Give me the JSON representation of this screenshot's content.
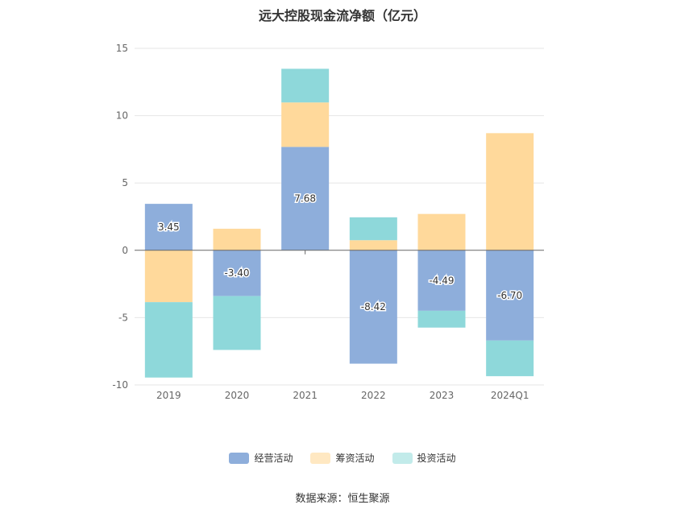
{
  "title": "远大控股现金流净额（亿元）",
  "source": "数据来源：恒生聚源",
  "chart_data": {
    "type": "bar",
    "stacked": true,
    "categories": [
      "2019",
      "2020",
      "2021",
      "2022",
      "2023",
      "2024Q1"
    ],
    "ylim": [
      -10,
      15
    ],
    "yticks": [
      -10,
      -5,
      0,
      5,
      10,
      15
    ],
    "grid": true,
    "legend_position": "bottom",
    "series": [
      {
        "name": "经营活动",
        "color": "#8eaedb",
        "values": [
          3.45,
          -3.4,
          7.68,
          -8.42,
          -4.49,
          -6.7
        ],
        "labels": [
          "3.45",
          "-3.40",
          "7.68",
          "-8.42",
          "-4.49",
          "-6.70"
        ]
      },
      {
        "name": "筹资活动",
        "color": "#ffd99b",
        "values": [
          -3.85,
          1.6,
          3.3,
          0.75,
          2.7,
          8.7
        ]
      },
      {
        "name": "投资活动",
        "color": "#8ed8da",
        "values": [
          -5.6,
          -4.0,
          2.5,
          1.7,
          -1.25,
          -2.65
        ]
      }
    ]
  }
}
